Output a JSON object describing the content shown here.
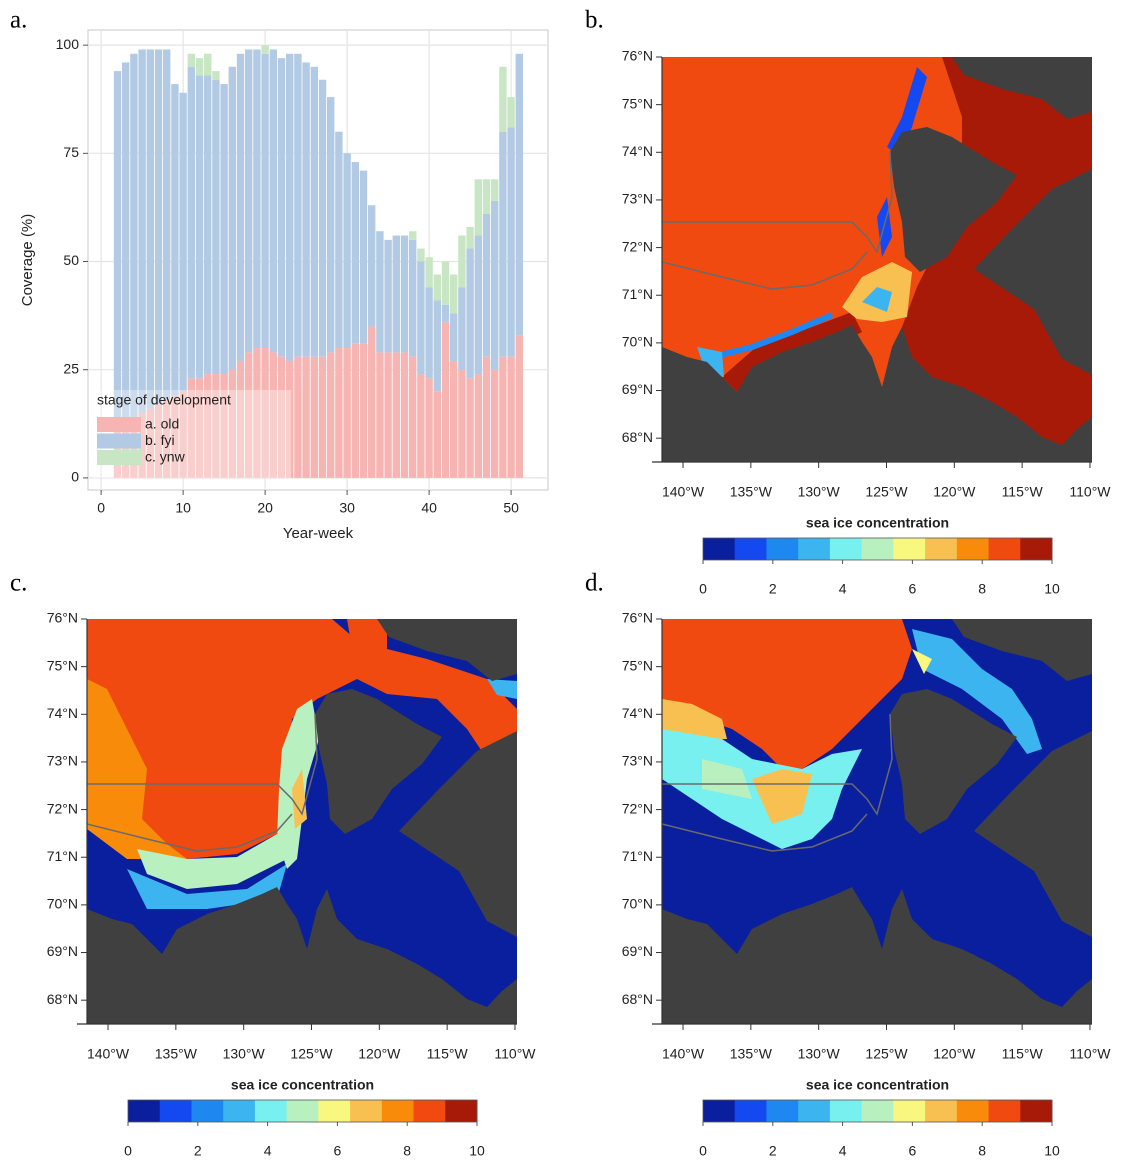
{
  "chart_data": [
    {
      "type": "bar",
      "stacked": true,
      "panel_label": "a.",
      "xlabel": "Year-week",
      "ylabel": "Coverage (%)",
      "legend_title": "stage of development",
      "legend_position": "bottom-left",
      "grid": true,
      "x": [
        2,
        3,
        4,
        5,
        6,
        7,
        8,
        9,
        10,
        11,
        12,
        13,
        14,
        15,
        16,
        17,
        18,
        19,
        20,
        21,
        22,
        23,
        24,
        25,
        26,
        27,
        28,
        29,
        30,
        31,
        32,
        33,
        34,
        35,
        36,
        37,
        38,
        39,
        40,
        41,
        42,
        43,
        44,
        45,
        46,
        47,
        48,
        49,
        50,
        51
      ],
      "series": [
        {
          "name": "a. old",
          "color": "#f6b5b2",
          "values": [
            12,
            13,
            14,
            15,
            16,
            17,
            18,
            19,
            20,
            23,
            23,
            24,
            24,
            24,
            25,
            27,
            29,
            30,
            30,
            29,
            28,
            27,
            28,
            28,
            28,
            28,
            29,
            30,
            30,
            31,
            31,
            35,
            29,
            29,
            29,
            29,
            28,
            24,
            23,
            20,
            36,
            27,
            25,
            23,
            24,
            28,
            25,
            28,
            28,
            33
          ]
        },
        {
          "name": "b. fyi",
          "color": "#b2cae3",
          "values": [
            82,
            83,
            84,
            84,
            83,
            82,
            81,
            72,
            69,
            72,
            70,
            69,
            68,
            67,
            70,
            71,
            70,
            69,
            68,
            70,
            69,
            71,
            70,
            68,
            67,
            64,
            59,
            50,
            45,
            42,
            40,
            28,
            28,
            26,
            27,
            27,
            27,
            26,
            21,
            21,
            4,
            11,
            19,
            30,
            32,
            33,
            39,
            52,
            53,
            65
          ]
        },
        {
          "name": "c. ynw",
          "color": "#c8e6c4",
          "values": [
            0,
            0,
            0,
            0,
            0,
            0,
            0,
            0,
            0,
            3,
            4,
            5,
            2,
            0,
            0,
            0,
            0,
            0,
            2,
            0,
            0,
            0,
            0,
            0,
            0,
            0,
            0,
            0,
            0,
            0,
            0,
            0,
            0,
            0,
            0,
            0,
            2,
            3,
            7,
            6,
            10,
            9,
            12,
            5,
            13,
            8,
            5,
            15,
            7,
            0
          ]
        }
      ],
      "xlim": [
        -1.6,
        54.5
      ],
      "ylim": [
        -2.8,
        103.5
      ],
      "xticks": [
        0,
        10,
        20,
        30,
        40,
        50
      ],
      "yticks": [
        0,
        25,
        50,
        75,
        100
      ]
    },
    {
      "type": "map",
      "panel_label": "b.",
      "xlim": [
        -141.55,
        -109.85
      ],
      "ylim": [
        67.5,
        76
      ],
      "xticks": [
        {
          "value": -140,
          "label": "140°W"
        },
        {
          "value": -135,
          "label": "135°W"
        },
        {
          "value": -130,
          "label": "130°W"
        },
        {
          "value": -125,
          "label": "125°W"
        },
        {
          "value": -120,
          "label": "120°W"
        },
        {
          "value": -115,
          "label": "115°W"
        },
        {
          "value": -110,
          "label": "110°W"
        }
      ],
      "yticks": [
        {
          "value": 68,
          "label": "68°N"
        },
        {
          "value": 69,
          "label": "69°N"
        },
        {
          "value": 70,
          "label": "70°N"
        },
        {
          "value": 71,
          "label": "71°N"
        },
        {
          "value": 72,
          "label": "72°N"
        },
        {
          "value": 73,
          "label": "73°N"
        },
        {
          "value": 74,
          "label": "74°N"
        },
        {
          "value": 75,
          "label": "75°N"
        },
        {
          "value": 76,
          "label": "76°N"
        }
      ],
      "colorbar": {
        "title": "sea ice concentration",
        "lim": [
          0,
          10
        ],
        "ticks": [
          0,
          2,
          4,
          6,
          8,
          10
        ],
        "colors": [
          "#0a1f9e",
          "#1448f0",
          "#1e88f0",
          "#3cb4f0",
          "#78f0f0",
          "#b8f0c0",
          "#f8f880",
          "#f8c050",
          "#f88c0a",
          "#f04a10",
          "#a81a08"
        ]
      }
    },
    {
      "type": "map",
      "panel_label": "c.",
      "xlim": [
        -141.55,
        -109.85
      ],
      "ylim": [
        67.5,
        76
      ],
      "xticks": [
        {
          "value": -140,
          "label": "140°W"
        },
        {
          "value": -135,
          "label": "135°W"
        },
        {
          "value": -130,
          "label": "130°W"
        },
        {
          "value": -125,
          "label": "125°W"
        },
        {
          "value": -120,
          "label": "120°W"
        },
        {
          "value": -115,
          "label": "115°W"
        },
        {
          "value": -110,
          "label": "110°W"
        }
      ],
      "yticks": [
        {
          "value": 68,
          "label": "68°N"
        },
        {
          "value": 69,
          "label": "69°N"
        },
        {
          "value": 70,
          "label": "70°N"
        },
        {
          "value": 71,
          "label": "71°N"
        },
        {
          "value": 72,
          "label": "72°N"
        },
        {
          "value": 73,
          "label": "73°N"
        },
        {
          "value": 74,
          "label": "74°N"
        },
        {
          "value": 75,
          "label": "75°N"
        },
        {
          "value": 76,
          "label": "76°N"
        }
      ],
      "colorbar": {
        "title": "sea ice concentration",
        "lim": [
          0,
          10
        ],
        "ticks": [
          0,
          2,
          4,
          6,
          8,
          10
        ],
        "colors": [
          "#0a1f9e",
          "#1448f0",
          "#1e88f0",
          "#3cb4f0",
          "#78f0f0",
          "#b8f0c0",
          "#f8f880",
          "#f8c050",
          "#f88c0a",
          "#f04a10",
          "#a81a08"
        ]
      }
    },
    {
      "type": "map",
      "panel_label": "d.",
      "xlim": [
        -141.55,
        -109.85
      ],
      "ylim": [
        67.5,
        76
      ],
      "xticks": [
        {
          "value": -140,
          "label": "140°W"
        },
        {
          "value": -135,
          "label": "135°W"
        },
        {
          "value": -130,
          "label": "130°W"
        },
        {
          "value": -125,
          "label": "125°W"
        },
        {
          "value": -120,
          "label": "120°W"
        },
        {
          "value": -115,
          "label": "115°W"
        },
        {
          "value": -110,
          "label": "110°W"
        }
      ],
      "yticks": [
        {
          "value": 68,
          "label": "68°N"
        },
        {
          "value": 69,
          "label": "69°N"
        },
        {
          "value": 70,
          "label": "70°N"
        },
        {
          "value": 71,
          "label": "71°N"
        },
        {
          "value": 72,
          "label": "72°N"
        },
        {
          "value": 73,
          "label": "73°N"
        },
        {
          "value": 74,
          "label": "74°N"
        },
        {
          "value": 75,
          "label": "75°N"
        },
        {
          "value": 76,
          "label": "76°N"
        }
      ],
      "colorbar": {
        "title": "sea ice concentration",
        "lim": [
          0,
          10
        ],
        "ticks": [
          0,
          2,
          4,
          6,
          8,
          10
        ],
        "colors": [
          "#0a1f9e",
          "#1448f0",
          "#1e88f0",
          "#3cb4f0",
          "#78f0f0",
          "#b8f0c0",
          "#f8f880",
          "#f8c050",
          "#f88c0a",
          "#f04a10",
          "#a81a08"
        ]
      }
    }
  ]
}
